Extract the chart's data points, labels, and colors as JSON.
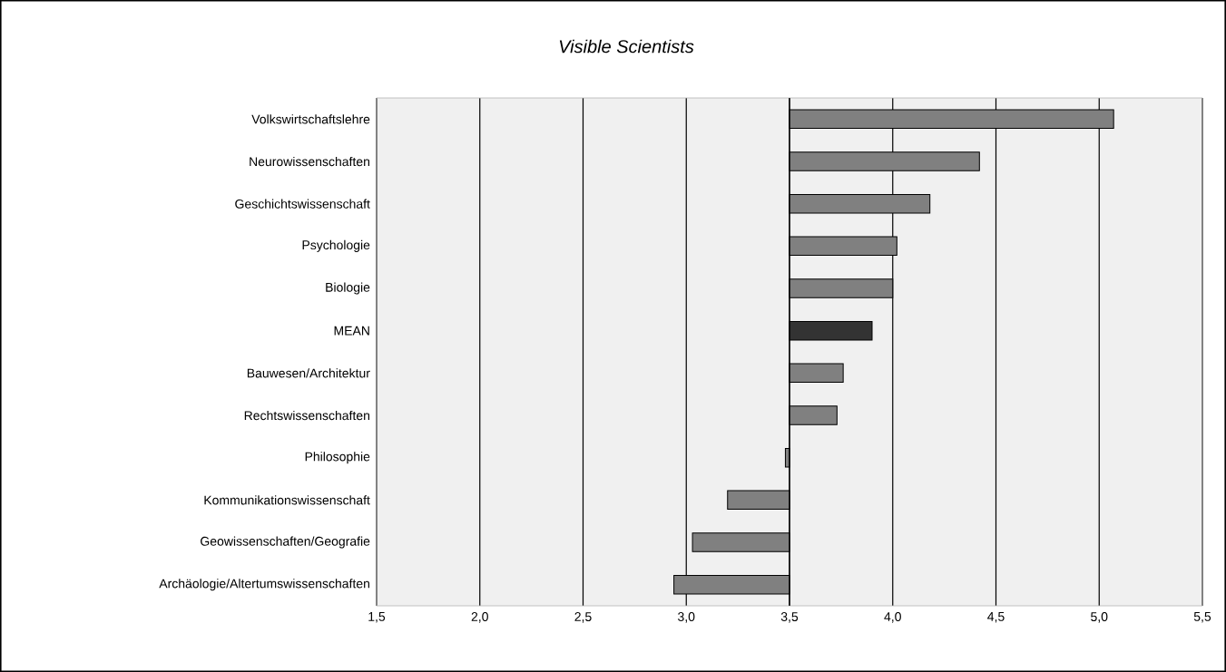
{
  "chart_data": {
    "type": "bar",
    "orientation": "horizontal",
    "title": "Visible Scientists",
    "categories": [
      "Volkswirtschaftslehre",
      "Neurowissenschaften",
      "Geschichtswissenschaft",
      "Psychologie",
      "Biologie",
      "MEAN",
      "Bauwesen/Architektur",
      "Rechtswissenschaften",
      "Philosophie",
      "Kommunikationswissenschaft",
      "Geowissenschaften/Geografie",
      "Archäologie/Altertumswissenschaften"
    ],
    "base": [
      3.5,
      3.5,
      3.5,
      3.5,
      3.5,
      3.5,
      3.5,
      3.5,
      3.5,
      3.5,
      3.5,
      3.5
    ],
    "values": [
      1.57,
      0.92,
      0.68,
      0.52,
      0.5,
      0.4,
      0.26,
      0.23,
      -0.02,
      -0.3,
      -0.47,
      -0.56
    ],
    "colors": [
      "#808080",
      "#808080",
      "#808080",
      "#808080",
      "#808080",
      "#333333",
      "#808080",
      "#808080",
      "#808080",
      "#808080",
      "#808080",
      "#808080"
    ],
    "xlim": [
      1.5,
      5.5
    ],
    "xticks": [
      {
        "value": 1.5,
        "label": "1,5"
      },
      {
        "value": 2.0,
        "label": "2,0"
      },
      {
        "value": 2.5,
        "label": "2,5"
      },
      {
        "value": 3.0,
        "label": "3,0"
      },
      {
        "value": 3.5,
        "label": "3,5"
      },
      {
        "value": 4.0,
        "label": "4,0"
      },
      {
        "value": 4.5,
        "label": "4,5"
      },
      {
        "value": 5.0,
        "label": "5,0"
      },
      {
        "value": 5.5,
        "label": "5,5"
      }
    ],
    "grid": "x"
  }
}
